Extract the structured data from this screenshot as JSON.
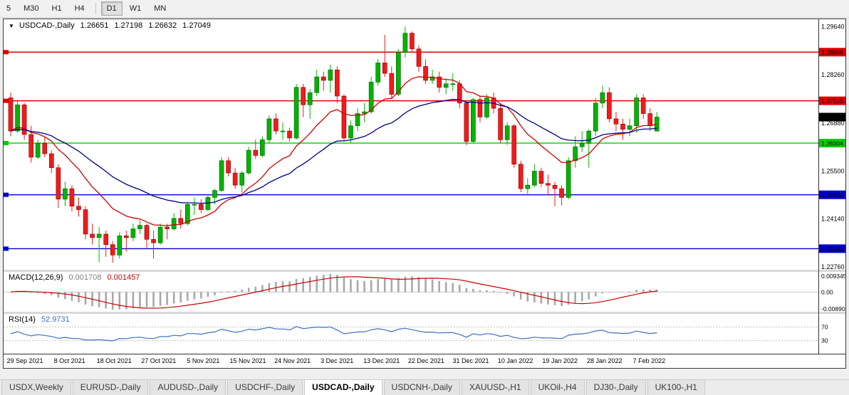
{
  "toolbar": {
    "periods": [
      "5",
      "M30",
      "H1",
      "H4",
      "D1",
      "W1",
      "MN"
    ]
  },
  "chart": {
    "menu_icon": "▼",
    "symbol": "USDCAD-,Daily",
    "open": "1.26651",
    "high": "1.27198",
    "low": "1.26632",
    "close": "1.27049"
  },
  "chart_data": {
    "type": "candlestick",
    "symbol": "USDCAD-",
    "timeframe": "Daily",
    "y_range": [
      1.2268,
      1.2985
    ],
    "y_ticks": [
      {
        "label": "1.29640",
        "value": 1.2964
      },
      {
        "label": "1.28260",
        "value": 1.2826
      },
      {
        "label": "1.26880",
        "value": 1.2688
      },
      {
        "label": "1.25500",
        "value": 1.255
      },
      {
        "label": "1.24140",
        "value": 1.2414
      },
      {
        "label": "1.22760",
        "value": 1.2276
      }
    ],
    "levels": [
      {
        "label": "1.28908",
        "value": 1.28908,
        "color": "#e00000"
      },
      {
        "label": "1.27515",
        "value": 1.27515,
        "color": "#e00000"
      },
      {
        "label": "1.26304",
        "value": 1.26304,
        "color": "#00cc00"
      },
      {
        "label": "1.24825",
        "value": 1.24825,
        "color": "#0000d0"
      },
      {
        "label": "1.23283",
        "value": 1.23283,
        "color": "#0000d0"
      }
    ],
    "current_price": {
      "label": "1.27049",
      "value": 1.27049,
      "bg": "#000000",
      "fg": "#ffffff"
    },
    "x_labels": [
      "29 Sep 2021",
      "8 Oct 2021",
      "18 Oct 2021",
      "27 Oct 2021",
      "5 Nov 2021",
      "15 Nov 2021",
      "24 Nov 2021",
      "3 Dec 2021",
      "13 Dec 2021",
      "22 Dec 2021",
      "31 Dec 2021",
      "10 Jan 2022",
      "19 Jan 2022",
      "28 Jan 2022",
      "7 Feb 2022"
    ],
    "colors": {
      "up": "#00b400",
      "down": "#ee1c1c",
      "up_border": "#005a00",
      "down_border": "#8b0000"
    },
    "candles": [
      [
        1.276,
        1.2775,
        1.265,
        1.2665
      ],
      [
        1.2665,
        1.275,
        1.266,
        1.274
      ],
      [
        1.274,
        1.2745,
        1.264,
        1.2655
      ],
      [
        1.2655,
        1.268,
        1.2575,
        1.259
      ],
      [
        1.259,
        1.264,
        1.2585,
        1.263
      ],
      [
        1.263,
        1.265,
        1.259,
        1.26
      ],
      [
        1.26,
        1.261,
        1.2545,
        1.256
      ],
      [
        1.256,
        1.257,
        1.2445,
        1.247
      ],
      [
        1.247,
        1.252,
        1.245,
        1.25
      ],
      [
        1.25,
        1.251,
        1.2435,
        1.245
      ],
      [
        1.245,
        1.2475,
        1.242,
        1.244
      ],
      [
        1.244,
        1.245,
        1.2355,
        1.237
      ],
      [
        1.237,
        1.24,
        1.234,
        1.236
      ],
      [
        1.236,
        1.239,
        1.229,
        1.237
      ],
      [
        1.237,
        1.238,
        1.2305,
        1.234
      ],
      [
        1.234,
        1.235,
        1.2288,
        1.231
      ],
      [
        1.231,
        1.2375,
        1.23,
        1.2365
      ],
      [
        1.2365,
        1.238,
        1.232,
        1.236
      ],
      [
        1.236,
        1.24,
        1.235,
        1.2385
      ],
      [
        1.2385,
        1.241,
        1.237,
        1.2395
      ],
      [
        1.2395,
        1.24,
        1.233,
        1.2355
      ],
      [
        1.2355,
        1.238,
        1.23,
        1.2345
      ],
      [
        1.2345,
        1.24,
        1.234,
        1.239
      ],
      [
        1.239,
        1.24,
        1.2355,
        1.2385
      ],
      [
        1.2385,
        1.243,
        1.238,
        1.2415
      ],
      [
        1.2415,
        1.244,
        1.2385,
        1.24
      ],
      [
        1.24,
        1.246,
        1.2395,
        1.2455
      ],
      [
        1.2455,
        1.2475,
        1.2425,
        1.2455
      ],
      [
        1.2455,
        1.247,
        1.243,
        1.244
      ],
      [
        1.244,
        1.248,
        1.2435,
        1.2475
      ],
      [
        1.2475,
        1.25,
        1.2455,
        1.2495
      ],
      [
        1.2495,
        1.259,
        1.249,
        1.258
      ],
      [
        1.258,
        1.259,
        1.2535,
        1.2545
      ],
      [
        1.2545,
        1.256,
        1.25,
        1.251
      ],
      [
        1.251,
        1.255,
        1.249,
        1.2545
      ],
      [
        1.2545,
        1.262,
        1.254,
        1.261
      ],
      [
        1.261,
        1.264,
        1.2585,
        1.2595
      ],
      [
        1.2595,
        1.265,
        1.259,
        1.264
      ],
      [
        1.264,
        1.271,
        1.263,
        1.27
      ],
      [
        1.27,
        1.2715,
        1.2655,
        1.2665
      ],
      [
        1.2665,
        1.269,
        1.264,
        1.2665
      ],
      [
        1.2665,
        1.2675,
        1.2635,
        1.2645
      ],
      [
        1.2645,
        1.28,
        1.264,
        1.279
      ],
      [
        1.279,
        1.28,
        1.2705,
        1.274
      ],
      [
        1.274,
        1.2785,
        1.27,
        1.2775
      ],
      [
        1.2775,
        1.284,
        1.2765,
        1.282
      ],
      [
        1.282,
        1.2835,
        1.278,
        1.281
      ],
      [
        1.281,
        1.2855,
        1.2775,
        1.284
      ],
      [
        1.284,
        1.285,
        1.2745,
        1.2765
      ],
      [
        1.2765,
        1.277,
        1.2635,
        1.2645
      ],
      [
        1.2645,
        1.2695,
        1.263,
        1.268
      ],
      [
        1.268,
        1.273,
        1.2665,
        1.2715
      ],
      [
        1.2715,
        1.2745,
        1.269,
        1.272
      ],
      [
        1.272,
        1.282,
        1.2715,
        1.2805
      ],
      [
        1.2805,
        1.287,
        1.2795,
        1.286
      ],
      [
        1.286,
        1.294,
        1.282,
        1.283
      ],
      [
        1.283,
        1.285,
        1.276,
        1.277
      ],
      [
        1.277,
        1.29,
        1.2765,
        1.289
      ],
      [
        1.289,
        1.2964,
        1.2875,
        1.2945
      ],
      [
        1.2945,
        1.295,
        1.289,
        1.29
      ],
      [
        1.29,
        1.291,
        1.2835,
        1.285
      ],
      [
        1.285,
        1.287,
        1.28,
        1.281
      ],
      [
        1.281,
        1.284,
        1.28,
        1.282
      ],
      [
        1.282,
        1.2835,
        1.2775,
        1.279
      ],
      [
        1.279,
        1.2815,
        1.277,
        1.28
      ],
      [
        1.28,
        1.283,
        1.278,
        1.28
      ],
      [
        1.28,
        1.281,
        1.273,
        1.2745
      ],
      [
        1.2745,
        1.275,
        1.2625,
        1.2635
      ],
      [
        1.2635,
        1.276,
        1.263,
        1.2755
      ],
      [
        1.2755,
        1.2765,
        1.269,
        1.2705
      ],
      [
        1.2705,
        1.277,
        1.27,
        1.276
      ],
      [
        1.276,
        1.2775,
        1.2715,
        1.273
      ],
      [
        1.273,
        1.2745,
        1.263,
        1.264
      ],
      [
        1.264,
        1.269,
        1.2625,
        1.268
      ],
      [
        1.268,
        1.2685,
        1.256,
        1.257
      ],
      [
        1.257,
        1.258,
        1.249,
        1.25
      ],
      [
        1.25,
        1.253,
        1.2485,
        1.251
      ],
      [
        1.251,
        1.257,
        1.2505,
        1.255
      ],
      [
        1.255,
        1.256,
        1.2505,
        1.2515
      ],
      [
        1.2515,
        1.254,
        1.248,
        1.251
      ],
      [
        1.251,
        1.252,
        1.245,
        1.25
      ],
      [
        1.25,
        1.251,
        1.2452,
        1.2475
      ],
      [
        1.2475,
        1.259,
        1.247,
        1.258
      ],
      [
        1.258,
        1.265,
        1.256,
        1.262
      ],
      [
        1.262,
        1.2665,
        1.2605,
        1.263
      ],
      [
        1.263,
        1.267,
        1.256,
        1.2665
      ],
      [
        1.2665,
        1.276,
        1.265,
        1.2745
      ],
      [
        1.2745,
        1.2795,
        1.273,
        1.2775
      ],
      [
        1.2775,
        1.279,
        1.269,
        1.27
      ],
      [
        1.27,
        1.272,
        1.2665,
        1.2685
      ],
      [
        1.2685,
        1.27,
        1.264,
        1.267
      ],
      [
        1.267,
        1.27,
        1.265,
        1.268
      ],
      [
        1.268,
        1.277,
        1.266,
        1.276
      ],
      [
        1.276,
        1.277,
        1.27,
        1.2715
      ],
      [
        1.2715,
        1.273,
        1.2665,
        1.268
      ],
      [
        1.26651,
        1.27198,
        1.26632,
        1.27049
      ]
    ]
  },
  "indicators": {
    "macd": {
      "label": "MACD(12,26,9)",
      "value_main": "0.001708",
      "value_signal": "0.001457",
      "fast": 12,
      "slow": 26,
      "signal_period": 9,
      "axis_labels": [
        "0.009345",
        "0.00",
        "-0.00890"
      ],
      "hist_color": "#a8a8a8",
      "signal_color": "#cc0000"
    },
    "rsi": {
      "label": "RSI(14)",
      "value": "52.9731",
      "period": 14,
      "levels": [
        "70",
        "30"
      ],
      "color": "#3c6fc4"
    },
    "ma_fast": {
      "period": 13,
      "color": "#d40000"
    },
    "ma_slow": {
      "period": 30,
      "color": "#000080"
    }
  },
  "tabs": [
    "USDX,Weekly",
    "EURUSD-,Daily",
    "AUDUSD-,Daily",
    "USDCHF-,Daily",
    "USDCAD-,Daily",
    "USDCNH-,Daily",
    "XAUUSD-,H1",
    "UKOil-,H4",
    "DJ30-,Daily",
    "UK100-,H1"
  ],
  "active_tab": "USDCAD-,Daily"
}
